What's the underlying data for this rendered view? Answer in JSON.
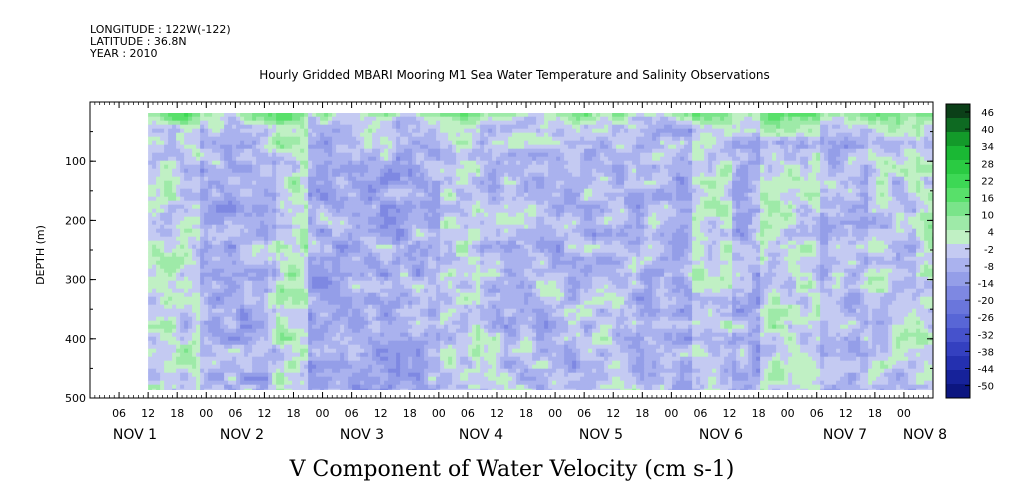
{
  "header": {
    "longitude": "LONGITUDE : 122W(-122)",
    "latitude": "LATITUDE : 36.8N",
    "year": "YEAR : 2010",
    "title": "Hourly Gridded MBARI Mooring M1 Sea Water Temperature and Salinity Observations"
  },
  "chart_data": {
    "type": "heatmap",
    "title": "Hourly Gridded MBARI Mooring M1 Sea Water Temperature and Salinity Observations",
    "xlabel": "V Component of Water Velocity (cm s-1)",
    "ylabel": "DEPTH (m)",
    "ylim": [
      500,
      0
    ],
    "y_reversed": true,
    "y_ticks": [
      100,
      200,
      300,
      400,
      500
    ],
    "x_range_hours": "Nov 1 00:00 to Nov 8 06:00, 2010",
    "x_tick_labels": [
      "06",
      "12",
      "18",
      "00",
      "06",
      "12",
      "18",
      "00",
      "06",
      "12",
      "18",
      "00",
      "06",
      "12",
      "18",
      "00",
      "06",
      "12",
      "18",
      "00",
      "06",
      "12",
      "18",
      "00",
      "06",
      "12",
      "18",
      "00"
    ],
    "x_day_labels": [
      "NOV 1",
      "NOV 2",
      "NOV 3",
      "NOV 4",
      "NOV 5",
      "NOV 6",
      "NOV 7",
      "NOV 8"
    ],
    "data_start": "Nov 1 12:00",
    "depth_data_range": [
      18,
      485
    ],
    "colorbar": {
      "labels": [
        "46",
        "40",
        "34",
        "28",
        "22",
        "16",
        "10",
        "4",
        "-2",
        "-8",
        "-14",
        "-20",
        "-26",
        "-32",
        "-38",
        "-44",
        "-50"
      ],
      "min": -50,
      "max": 50,
      "step": 3,
      "colors_dark_green_to_navy": [
        "#0b3f18",
        "#0e6a22",
        "#139a2a",
        "#1ab834",
        "#2acb42",
        "#3dd855",
        "#58e06a",
        "#7ae48a",
        "#9eeaa8",
        "#c0f0c4",
        "#c4caf2",
        "#aab2ee",
        "#949ee8",
        "#7e88e2",
        "#6a76dc",
        "#5866d6",
        "#4652cc",
        "#3440c0",
        "#2430b0",
        "#16229a",
        "#0c1680"
      ]
    },
    "field_description": "V velocity (cm/s) vs time and depth; surface layer strongly positive (green), interior mixed weak negative (light blue) and weak positive (light green) columns"
  }
}
